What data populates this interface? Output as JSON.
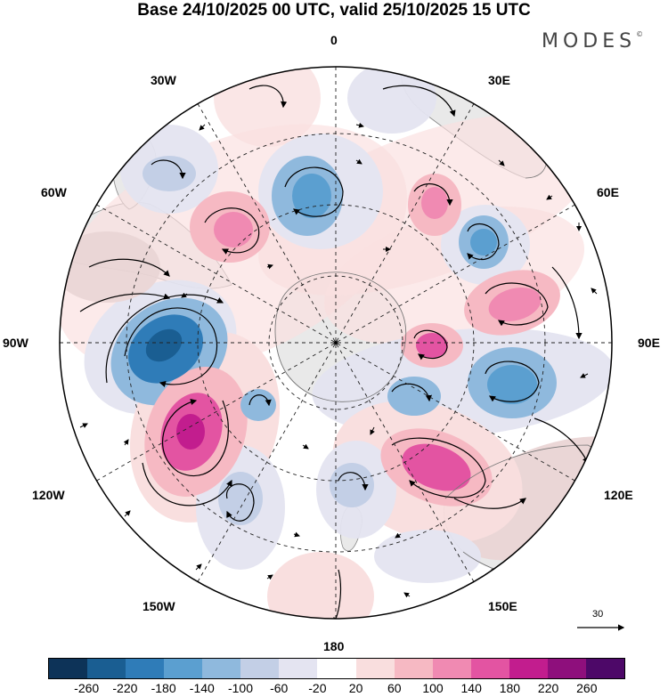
{
  "header": {
    "title": "Base 24/10/2025 00 UTC, valid 25/10/2025 15 UTC",
    "brand": "MODES",
    "brand_mark": "©"
  },
  "map": {
    "projection": "south-polar-stereographic",
    "longitude_labels": {
      "top": "0",
      "bottom": "180",
      "left": "90W",
      "right": "90E",
      "upper_left_1": "30W",
      "upper_left_2": "60W",
      "upper_right_1": "30E",
      "upper_right_2": "60E",
      "lower_left_1": "120W",
      "lower_left_2": "150W",
      "lower_right_1": "120E",
      "lower_right_2": "150E"
    },
    "reference_vector_label": "30"
  },
  "colorbar": {
    "colors": [
      "#0d3358",
      "#1a5e92",
      "#2f7cb8",
      "#5b9fd0",
      "#8fb9dd",
      "#c3cfe6",
      "#e4e4f1",
      "#ffffff",
      "#f9dede",
      "#f6b9c3",
      "#f08ab2",
      "#e354a2",
      "#c21d8e",
      "#8e0f7c",
      "#4d0868"
    ],
    "ticks": [
      "-260",
      "-220",
      "-180",
      "-140",
      "-100",
      "-60",
      "-20",
      "20",
      "60",
      "100",
      "140",
      "180",
      "220",
      "260"
    ]
  },
  "anomaly_colors": {
    "neg_strong": "#2f7cb8",
    "neg_mid": "#8fb9dd",
    "neg_weak": "#e4e4f1",
    "pos_weak": "#f9dede",
    "pos_mid": "#f08ab2",
    "pos_strong": "#c21d8e",
    "land": "#e9e9e9"
  }
}
